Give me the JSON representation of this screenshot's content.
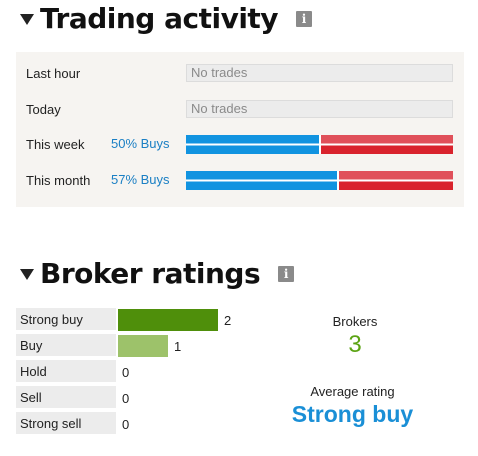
{
  "trading_activity": {
    "title": "Trading activity",
    "info_icon": "i",
    "rows": [
      {
        "label": "Last hour",
        "status": "No trades"
      },
      {
        "label": "Today",
        "status": "No trades"
      },
      {
        "label": "This week",
        "buys_label": "50% Buys",
        "buy_fraction": 0.5
      },
      {
        "label": "This month",
        "buys_label": "57% Buys",
        "buy_fraction": 0.57
      }
    ]
  },
  "broker_ratings": {
    "title": "Broker ratings",
    "info_icon": "i",
    "ratings": [
      {
        "label": "Strong buy",
        "count": "2",
        "value": 2,
        "color": "#4f8f0b"
      },
      {
        "label": "Buy",
        "count": "1",
        "value": 1,
        "color": "#9dc26a"
      },
      {
        "label": "Hold",
        "count": "0",
        "value": 0,
        "color": "#cccccc"
      },
      {
        "label": "Sell",
        "count": "0",
        "value": 0,
        "color": "#cccccc"
      },
      {
        "label": "Strong sell",
        "count": "0",
        "value": 0,
        "color": "#cccccc"
      }
    ],
    "brokers_label": "Brokers",
    "brokers_count": "3",
    "average_label": "Average rating",
    "average_value": "Strong buy"
  },
  "colors": {
    "buy": "#1193e0",
    "sell": "#d9232d",
    "accent": "#1a8fd6",
    "green": "#5ba313"
  }
}
